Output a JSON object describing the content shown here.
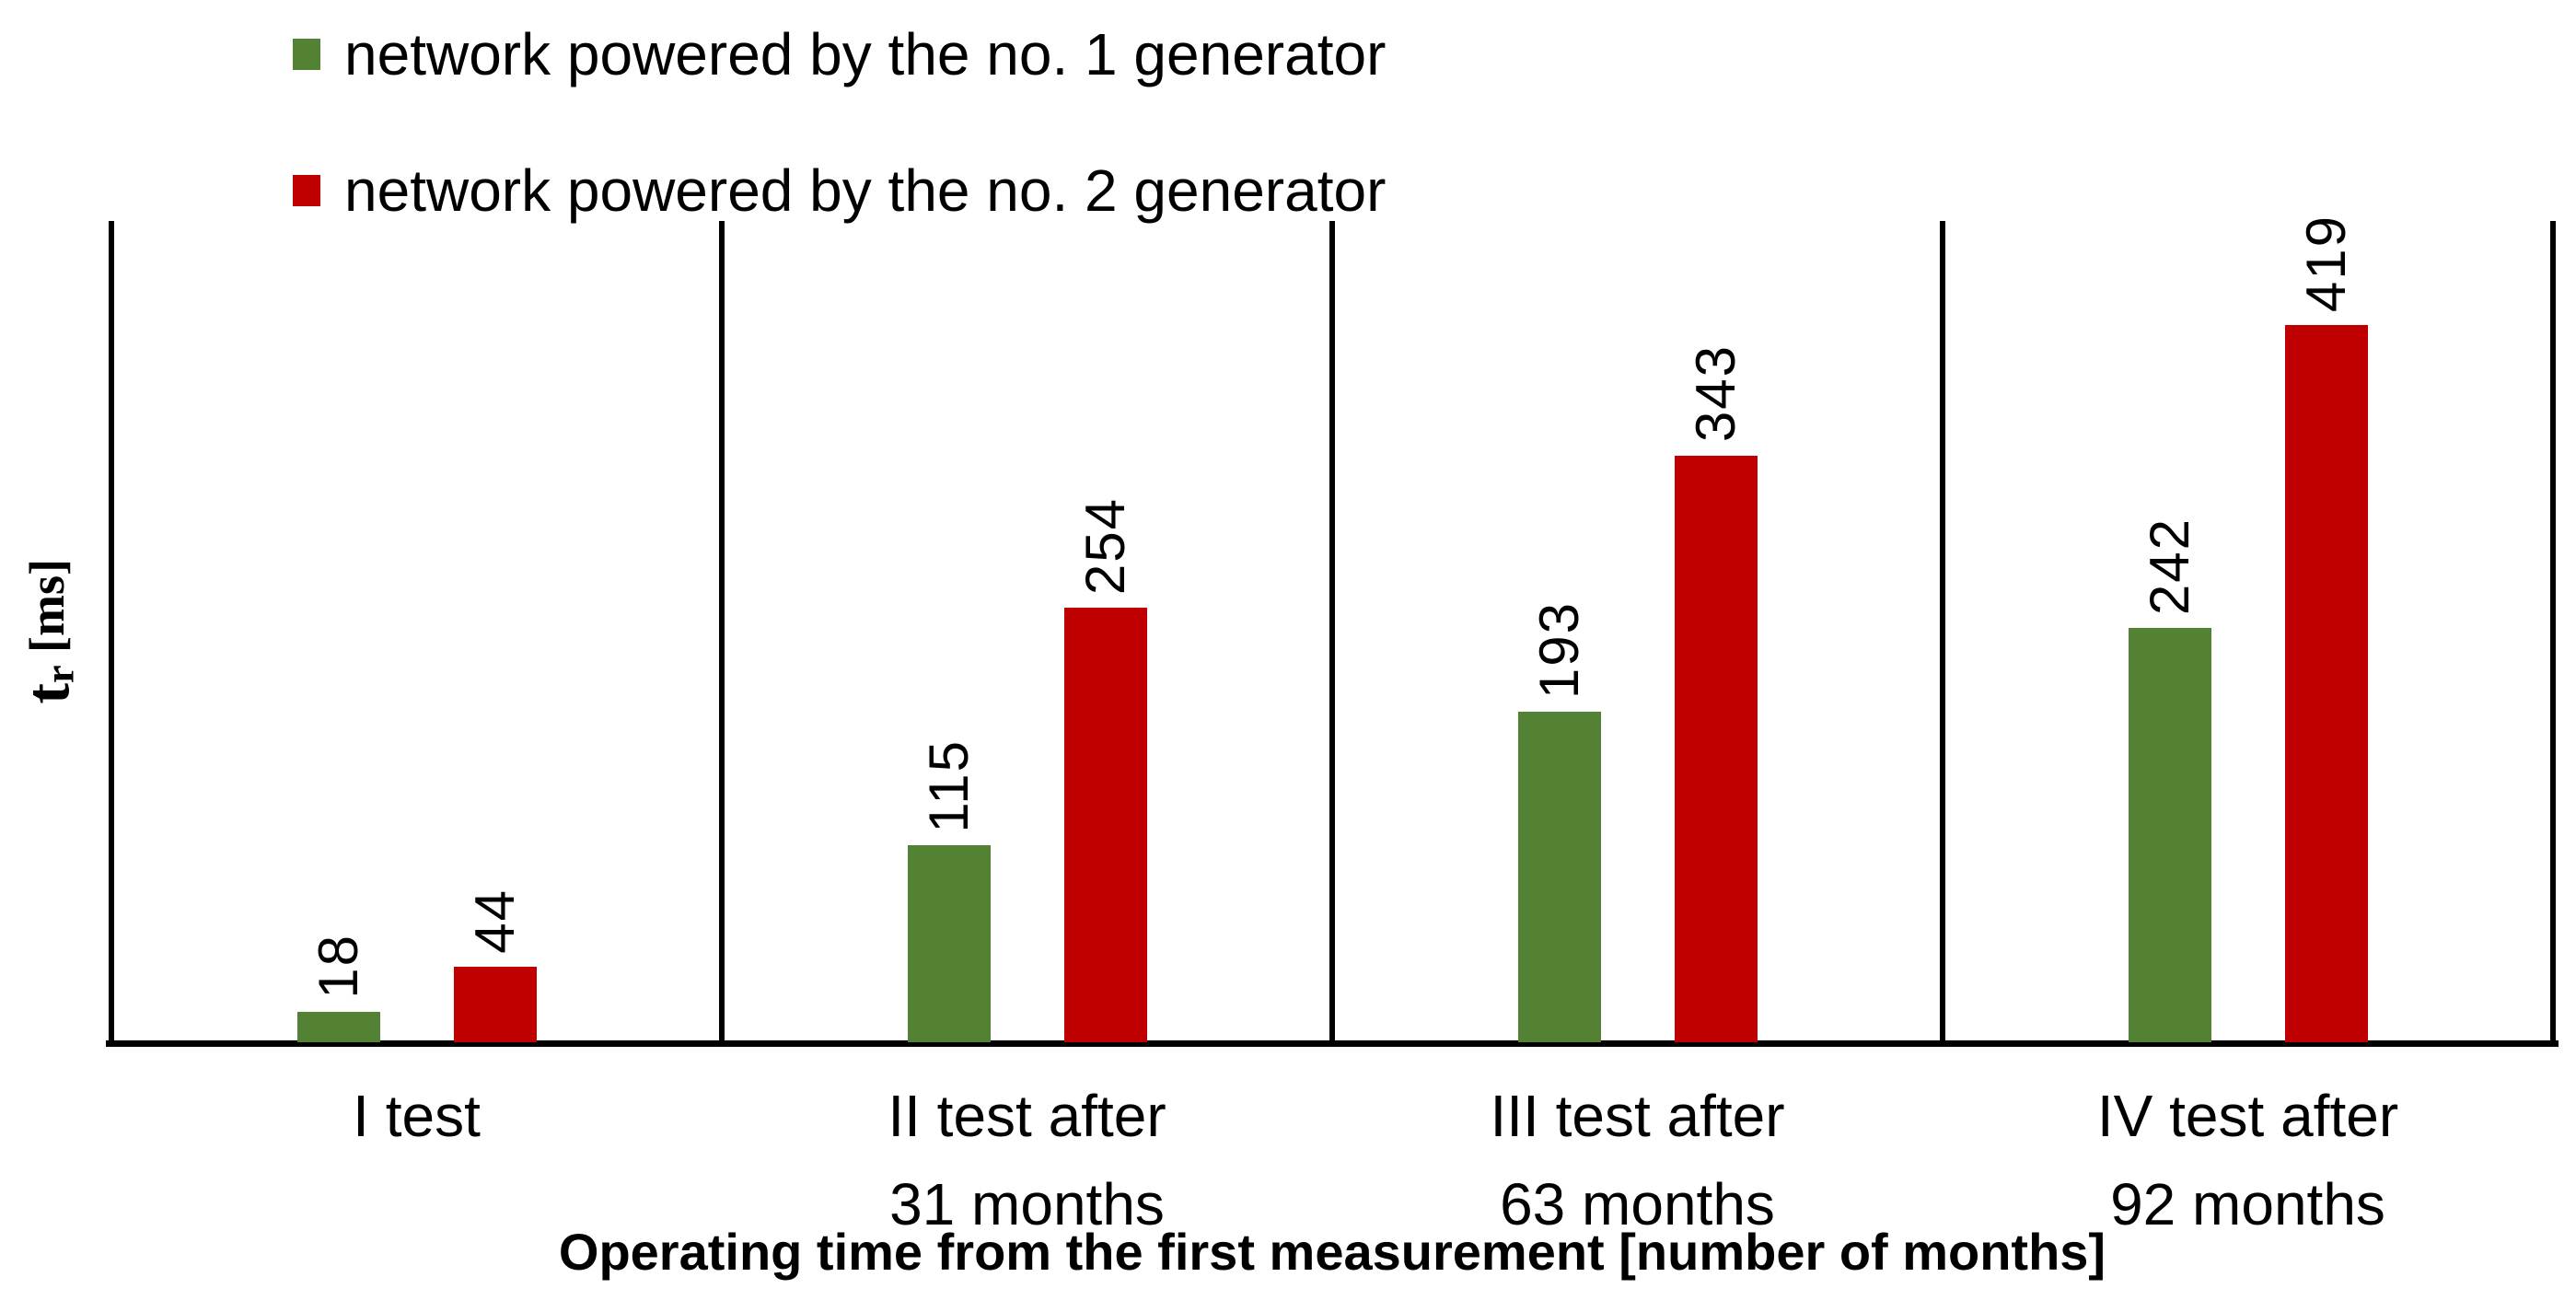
{
  "legend": {
    "items": [
      {
        "label": "network powered by the no. 1 generator",
        "color": "#548235"
      },
      {
        "label": "network powered by the no. 2 generator",
        "color": "#C00000"
      }
    ]
  },
  "chart_data": {
    "type": "bar",
    "title": "",
    "categories": [
      {
        "line1": "I test",
        "line2": ""
      },
      {
        "line1": "II test after",
        "line2": "31 months"
      },
      {
        "line1": "III test after",
        "line2": "63 months"
      },
      {
        "line1": "IV test after",
        "line2": "92 months"
      }
    ],
    "series": [
      {
        "name": "network powered by the no. 1 generator",
        "color": "#548235",
        "values": [
          18,
          115,
          193,
          242
        ]
      },
      {
        "name": "network powered by the no. 2 generator",
        "color": "#C00000",
        "values": [
          44,
          254,
          343,
          419
        ]
      }
    ],
    "ylabel": "t_r [ms]",
    "y_label_parts": {
      "main": "t",
      "sub": "r",
      "unit": " [ms]"
    },
    "xlabel": "Operating time from the first measurement [number of months]",
    "ylim": [
      0,
      480
    ],
    "grid": false,
    "legend_position": "top-left",
    "bar_value_labels_rotated": true,
    "axis_color": "#000000"
  }
}
